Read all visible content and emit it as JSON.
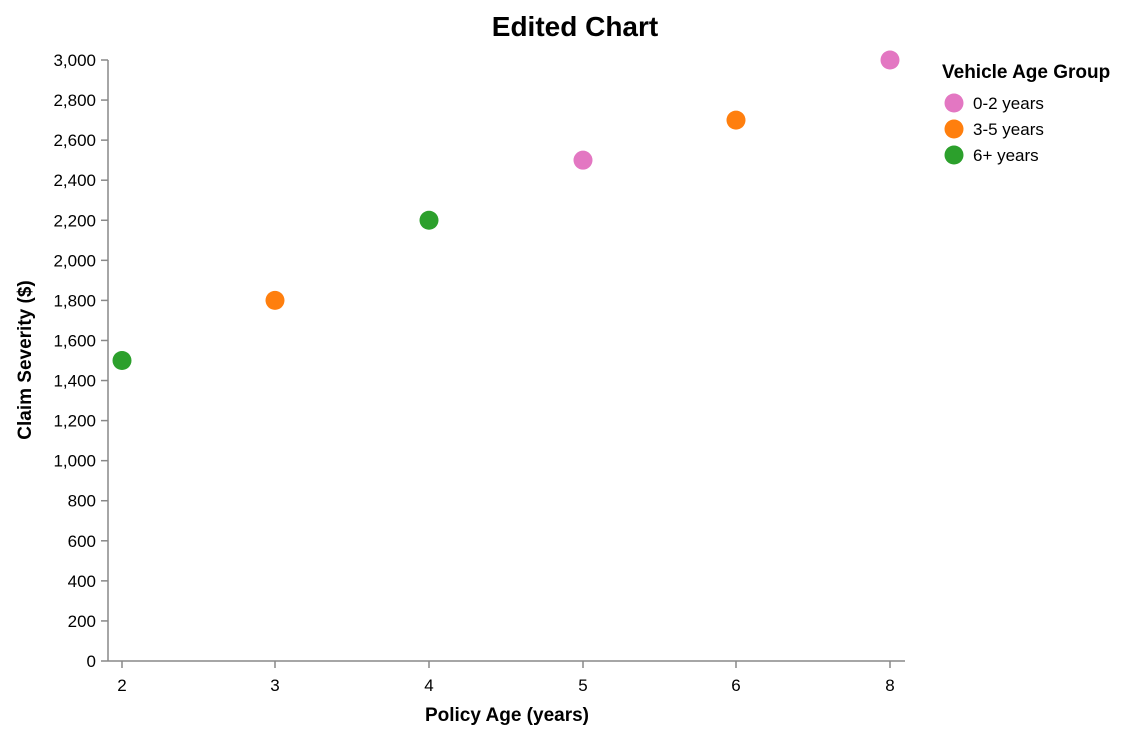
{
  "chart_data": {
    "type": "scatter",
    "title": "Edited Chart",
    "xlabel": "Policy Age (years)",
    "ylabel": "Claim Severity ($)",
    "x_categories": [
      2,
      3,
      4,
      5,
      6,
      8
    ],
    "ylim": [
      0,
      3000
    ],
    "y_ticks": [
      0,
      200,
      400,
      600,
      800,
      1000,
      1200,
      1400,
      1600,
      1800,
      2000,
      2200,
      2400,
      2600,
      2800,
      3000
    ],
    "y_tick_labels": [
      "0",
      "200",
      "400",
      "600",
      "800",
      "1,000",
      "1,200",
      "1,400",
      "1,600",
      "1,800",
      "2,000",
      "2,200",
      "2,400",
      "2,600",
      "2,800",
      "3,000"
    ],
    "grid": false,
    "legend": {
      "title": "Vehicle Age Group",
      "placement": "top-right",
      "entries": [
        {
          "label": "0-2 years",
          "color": "#e377c2"
        },
        {
          "label": "3-5 years",
          "color": "#ff7f0e"
        },
        {
          "label": "6+ years",
          "color": "#2ca02c"
        }
      ]
    },
    "points": [
      {
        "x": 2,
        "y": 1500,
        "group": "6+ years"
      },
      {
        "x": 3,
        "y": 1800,
        "group": "3-5 years"
      },
      {
        "x": 4,
        "y": 2200,
        "group": "6+ years"
      },
      {
        "x": 5,
        "y": 2500,
        "group": "0-2 years"
      },
      {
        "x": 6,
        "y": 2700,
        "group": "3-5 years"
      },
      {
        "x": 8,
        "y": 3000,
        "group": "0-2 years"
      }
    ]
  }
}
